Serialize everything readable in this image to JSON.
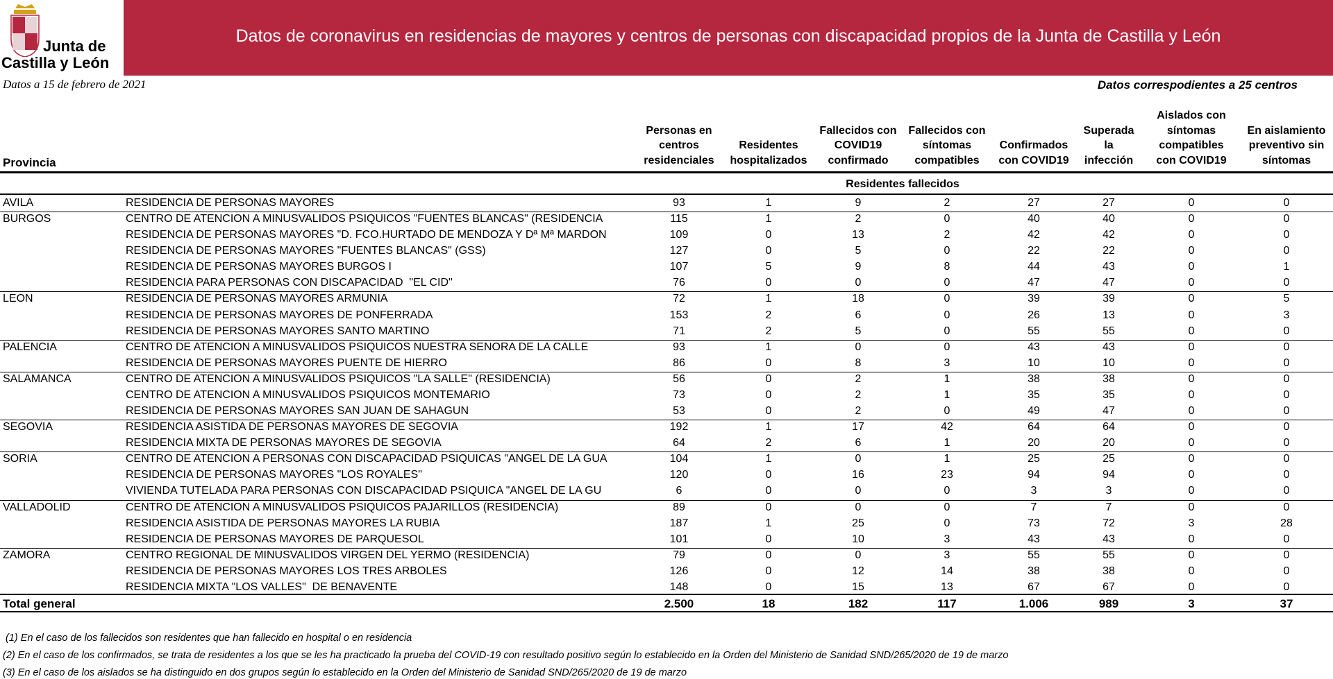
{
  "header": {
    "logo_line1": "Junta de",
    "logo_line2": "Castilla y León",
    "title": "Datos de coronavirus en residencias de mayores y centros de personas con discapacidad propios de la Junta de Castilla y León"
  },
  "date": "Datos a 15 de febrero de 2021",
  "note": "Datos correspodientes a 25 centros",
  "table": {
    "province_header": "Provincia",
    "columns": [
      [
        "Personas en",
        "centros",
        "residenciales"
      ],
      [
        "Residentes",
        "hospitalizados"
      ],
      [
        "Fallecidos con",
        "COVID19",
        "confirmado"
      ],
      [
        "Fallecidos con",
        "síntomas",
        "compatibles"
      ],
      [
        "Confirmados",
        "con COVID19"
      ],
      [
        "Superada",
        "la",
        "infección"
      ],
      [
        "Aislados con",
        "síntomas",
        "compatibles",
        "con COVID19"
      ],
      [
        "En aislamiento",
        "preventivo sin",
        "síntomas"
      ]
    ],
    "group_header": "Residentes fallecidos",
    "groups": [
      {
        "province": "AVILA",
        "rows": [
          {
            "name": "RESIDENCIA DE PERSONAS MAYORES",
            "cells": [
              "93",
              "1",
              "9",
              "2",
              "27",
              "27",
              "0",
              "0"
            ]
          }
        ]
      },
      {
        "province": "BURGOS",
        "rows": [
          {
            "name": "CENTRO DE ATENCION A MINUSVALIDOS PSIQUICOS \"FUENTES BLANCAS\" (RESIDENCIA",
            "cells": [
              "115",
              "1",
              "2",
              "0",
              "40",
              "40",
              "0",
              "0"
            ]
          },
          {
            "name": "RESIDENCIA DE PERSONAS MAYORES \"D. FCO.HURTADO DE MENDOZA Y Dª Mª MARDON",
            "cells": [
              "109",
              "0",
              "13",
              "2",
              "42",
              "42",
              "0",
              "0"
            ]
          },
          {
            "name": "RESIDENCIA DE PERSONAS MAYORES \"FUENTES BLANCAS\" (GSS)",
            "cells": [
              "127",
              "0",
              "5",
              "0",
              "22",
              "22",
              "0",
              "0"
            ]
          },
          {
            "name": "RESIDENCIA DE PERSONAS MAYORES BURGOS I",
            "cells": [
              "107",
              "5",
              "9",
              "8",
              "44",
              "43",
              "0",
              "1"
            ]
          },
          {
            "name": "RESIDENCIA PARA PERSONAS CON DISCAPACIDAD  \"EL CID\"",
            "cells": [
              "76",
              "0",
              "0",
              "0",
              "47",
              "47",
              "0",
              "0"
            ]
          }
        ]
      },
      {
        "province": "LEON",
        "rows": [
          {
            "name": "RESIDENCIA DE PERSONAS MAYORES ARMUNIA",
            "cells": [
              "72",
              "1",
              "18",
              "0",
              "39",
              "39",
              "0",
              "5"
            ]
          },
          {
            "name": "RESIDENCIA DE PERSONAS MAYORES DE PONFERRADA",
            "cells": [
              "153",
              "2",
              "6",
              "0",
              "26",
              "13",
              "0",
              "3"
            ]
          },
          {
            "name": "RESIDENCIA DE PERSONAS MAYORES SANTO MARTINO",
            "cells": [
              "71",
              "2",
              "5",
              "0",
              "55",
              "55",
              "0",
              "0"
            ]
          }
        ]
      },
      {
        "province": "PALENCIA",
        "rows": [
          {
            "name": "CENTRO DE ATENCION A MINUSVALIDOS PSIQUICOS NUESTRA SEÑORA DE LA CALLE",
            "cells": [
              "93",
              "1",
              "0",
              "0",
              "43",
              "43",
              "0",
              "0"
            ]
          },
          {
            "name": "RESIDENCIA DE PERSONAS MAYORES PUENTE DE HIERRO",
            "cells": [
              "86",
              "0",
              "8",
              "3",
              "10",
              "10",
              "0",
              "0"
            ]
          }
        ]
      },
      {
        "province": "SALAMANCA",
        "rows": [
          {
            "name": "CENTRO DE ATENCION A MINUSVALIDOS PSIQUICOS \"LA SALLE\" (RESIDENCIA)",
            "cells": [
              "56",
              "0",
              "2",
              "1",
              "38",
              "38",
              "0",
              "0"
            ]
          },
          {
            "name": "CENTRO DE ATENCION A MINUSVALIDOS PSIQUICOS MONTEMARIO",
            "cells": [
              "73",
              "0",
              "2",
              "1",
              "35",
              "35",
              "0",
              "0"
            ]
          },
          {
            "name": "RESIDENCIA DE PERSONAS MAYORES SAN JUAN DE SAHAGUN",
            "cells": [
              "53",
              "0",
              "2",
              "0",
              "49",
              "47",
              "0",
              "0"
            ]
          }
        ]
      },
      {
        "province": "SEGOVIA",
        "rows": [
          {
            "name": "RESIDENCIA ASISTIDA DE PERSONAS MAYORES DE SEGOVIA",
            "cells": [
              "192",
              "1",
              "17",
              "42",
              "64",
              "64",
              "0",
              "0"
            ]
          },
          {
            "name": "RESIDENCIA MIXTA DE PERSONAS MAYORES DE SEGOVIA",
            "cells": [
              "64",
              "2",
              "6",
              "1",
              "20",
              "20",
              "0",
              "0"
            ]
          }
        ]
      },
      {
        "province": "SORIA",
        "rows": [
          {
            "name": "CENTRO DE ATENCION A PERSONAS CON DISCAPACIDAD PSIQUICAS \"ANGEL DE LA GUA",
            "cells": [
              "104",
              "1",
              "0",
              "1",
              "25",
              "25",
              "0",
              "0"
            ]
          },
          {
            "name": "RESIDENCIA DE PERSONAS MAYORES \"LOS ROYALES\"",
            "cells": [
              "120",
              "0",
              "16",
              "23",
              "94",
              "94",
              "0",
              "0"
            ]
          },
          {
            "name": "VIVIENDA TUTELADA PARA PERSONAS CON DISCAPACIDAD PSIQUICA \"ANGEL DE LA GU",
            "cells": [
              "6",
              "0",
              "0",
              "0",
              "3",
              "3",
              "0",
              "0"
            ]
          }
        ]
      },
      {
        "province": "VALLADOLID",
        "rows": [
          {
            "name": "CENTRO DE ATENCION A MINUSVALIDOS PSIQUICOS PAJARILLOS (RESIDENCIA)",
            "cells": [
              "89",
              "0",
              "0",
              "0",
              "7",
              "7",
              "0",
              "0"
            ]
          },
          {
            "name": "RESIDENCIA ASISTIDA DE PERSONAS MAYORES LA RUBIA",
            "cells": [
              "187",
              "1",
              "25",
              "0",
              "73",
              "72",
              "3",
              "28"
            ]
          },
          {
            "name": "RESIDENCIA DE PERSONAS MAYORES DE PARQUESOL",
            "cells": [
              "101",
              "0",
              "10",
              "3",
              "43",
              "43",
              "0",
              "0"
            ]
          }
        ]
      },
      {
        "province": "ZAMORA",
        "rows": [
          {
            "name": "CENTRO REGIONAL DE MINUSVALIDOS VIRGEN DEL YERMO (RESIDENCIA)",
            "cells": [
              "79",
              "0",
              "0",
              "3",
              "55",
              "55",
              "0",
              "0"
            ]
          },
          {
            "name": "RESIDENCIA DE PERSONAS MAYORES LOS TRES ARBOLES",
            "cells": [
              "126",
              "0",
              "12",
              "14",
              "38",
              "38",
              "0",
              "0"
            ]
          },
          {
            "name": "RESIDENCIA MIXTA \"LOS VALLES\"  DE BENAVENTE",
            "cells": [
              "148",
              "0",
              "15",
              "13",
              "67",
              "67",
              "0",
              "0"
            ]
          }
        ]
      }
    ],
    "total": {
      "label": "Total general",
      "cells": [
        "2.500",
        "18",
        "182",
        "117",
        "1.006",
        "989",
        "3",
        "37"
      ]
    }
  },
  "footnotes": [
    " (1) En el caso de los fallecidos son residentes que han fallecido en hospital o en residencia",
    "(2) En el caso de los confirmados, se trata de residentes a los que se les ha practicado la prueba del COVID-19 con resultado positivo según lo establecido en la Orden del Ministerio de Sanidad SND/265/2020 de 19 de marzo",
    "(3) En el caso de los aislados se ha distinguido en dos grupos según lo establecido en la Orden del Ministerio de Sanidad SND/265/2020 de 19 de marzo"
  ]
}
